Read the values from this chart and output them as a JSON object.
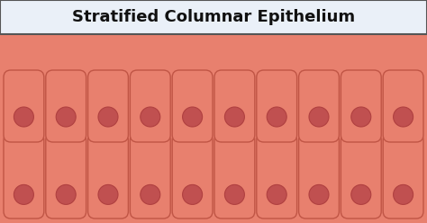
{
  "title": "Stratified Columnar Epithelium",
  "title_fontsize": 13,
  "title_box_bg": "#eaf0f8",
  "title_box_edge": "#555555",
  "background_color": "#e8806e",
  "cell_fill_color": "#e8806e",
  "cell_edge_color": "#c05545",
  "nucleus_fill_color": "#c05050",
  "nucleus_edge_color": "#b04040",
  "num_cols": 10,
  "fig_width": 4.74,
  "fig_height": 2.48,
  "dpi": 100
}
